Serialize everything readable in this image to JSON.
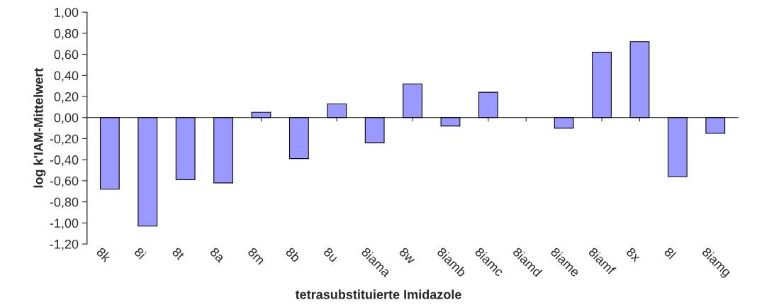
{
  "chart_data": {
    "type": "bar",
    "xlabel": "tetrasubstituierte Imidazole",
    "ylabel": "log k'IAM-Mittelwert",
    "categories": [
      "8k",
      "8i",
      "8t",
      "8a",
      "8m",
      "8b",
      "8u",
      "8iama",
      "8w",
      "8iamb",
      "8iamc",
      "8iamd",
      "8iame",
      "8iamf",
      "8x",
      "8l",
      "8iamg"
    ],
    "values": [
      -0.68,
      -1.03,
      -0.59,
      -0.62,
      0.05,
      -0.39,
      0.13,
      -0.24,
      0.32,
      -0.08,
      0.24,
      null,
      -0.1,
      0.62,
      0.72,
      -0.56,
      -0.15
    ],
    "color": "#9999ff",
    "ylim": [
      -1.2,
      1.0
    ],
    "yticks": [
      {
        "value": -1.2,
        "label": "-1,20"
      },
      {
        "value": -1.0,
        "label": "-1,00"
      },
      {
        "value": -0.8,
        "label": "-0,80"
      },
      {
        "value": -0.6,
        "label": "-0,60"
      },
      {
        "value": -0.4,
        "label": "-0,40"
      },
      {
        "value": -0.2,
        "label": "-0,20"
      },
      {
        "value": 0,
        "label": "0,00"
      },
      {
        "value": 0.2,
        "label": "0,20"
      },
      {
        "value": 0.4,
        "label": "0,40"
      },
      {
        "value": 0.6,
        "label": "0,60"
      },
      {
        "value": 0.8,
        "label": "0,80"
      },
      {
        "value": 1.0,
        "label": "1,00"
      }
    ],
    "legend": false
  }
}
